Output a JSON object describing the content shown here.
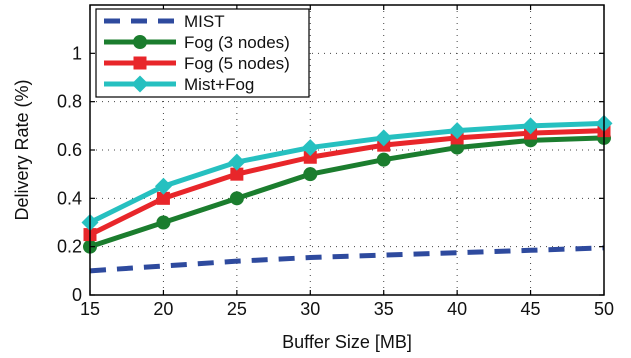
{
  "chart_data": {
    "type": "line",
    "title": "",
    "xlabel": "Buffer Size [MB]",
    "ylabel": "Delivery Rate (%)",
    "x": [
      15,
      20,
      25,
      30,
      35,
      40,
      45,
      50
    ],
    "xlim": [
      15,
      50
    ],
    "ylim": [
      0,
      1.2
    ],
    "x_ticks": [
      15,
      20,
      25,
      30,
      35,
      40,
      45,
      50
    ],
    "y_ticks": [
      0,
      0.2,
      0.4,
      0.6,
      0.8,
      1
    ],
    "y_tick_labels": [
      "0",
      "0.2",
      "0.4",
      "0.6",
      "0.8",
      "1"
    ],
    "grid": true,
    "legend_position": "top-left",
    "series": [
      {
        "name": "MIST",
        "color": "#2e4a9e",
        "style": "dashed",
        "marker": "none",
        "values": [
          0.1,
          0.12,
          0.14,
          0.155,
          0.165,
          0.175,
          0.185,
          0.195
        ]
      },
      {
        "name": "Fog (3 nodes)",
        "color": "#1b7d2e",
        "style": "solid",
        "marker": "circle",
        "values": [
          0.2,
          0.3,
          0.4,
          0.5,
          0.56,
          0.61,
          0.64,
          0.65
        ]
      },
      {
        "name": "Fog (5 nodes)",
        "color": "#e8262a",
        "style": "solid",
        "marker": "square",
        "values": [
          0.25,
          0.4,
          0.5,
          0.57,
          0.62,
          0.65,
          0.67,
          0.68
        ]
      },
      {
        "name": "Mist+Fog",
        "color": "#26c0c0",
        "style": "solid",
        "marker": "diamond",
        "values": [
          0.3,
          0.45,
          0.55,
          0.61,
          0.65,
          0.68,
          0.7,
          0.71
        ]
      }
    ]
  }
}
